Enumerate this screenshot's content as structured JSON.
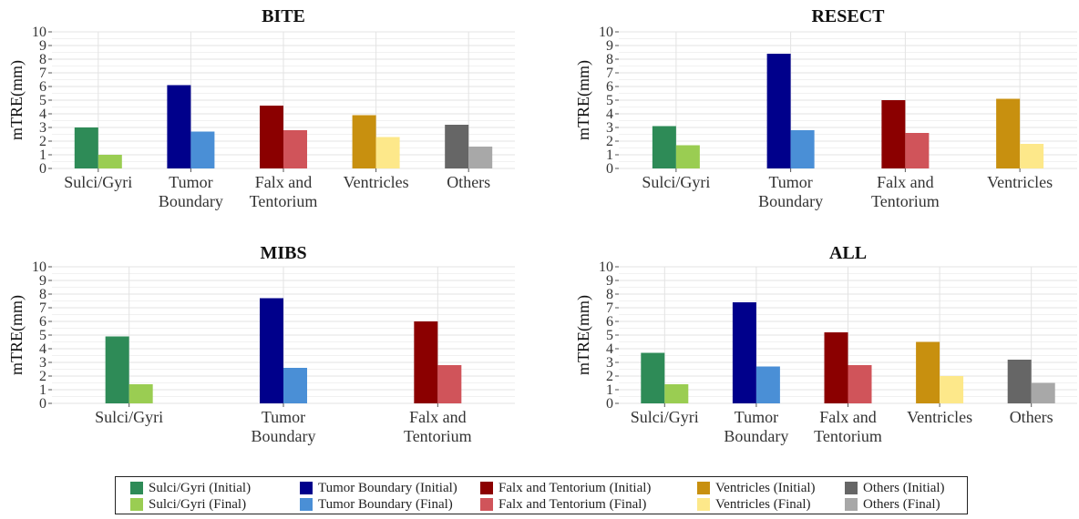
{
  "colors": {
    "sulci_initial": "#2e8b57",
    "sulci_final": "#9acd52",
    "tumor_initial": "#00008b",
    "tumor_final": "#4a8fd6",
    "falx_initial": "#8b0000",
    "falx_final": "#d0545a",
    "ventricles_initial": "#c8900f",
    "ventricles_final": "#fde88a",
    "others_initial": "#666666",
    "others_final": "#a8a8a8"
  },
  "chart_data": [
    {
      "type": "bar",
      "title": "BITE",
      "ylabel": "mTRE(mm)",
      "ylim": [
        0,
        10
      ],
      "yticks": [
        "0",
        "1",
        "2",
        "3",
        "4",
        "5",
        "6",
        "7",
        "8",
        "9",
        "10"
      ],
      "categories": [
        "Sulci/Gyri",
        "Tumor|Boundary",
        "Falx and|Tentorium",
        "Ventricles",
        "Others"
      ],
      "color_keys": [
        "sulci",
        "tumor",
        "falx",
        "ventricles",
        "others"
      ],
      "series": [
        {
          "name": "Initial",
          "values": [
            3.0,
            6.1,
            4.6,
            3.9,
            3.2
          ]
        },
        {
          "name": "Final",
          "values": [
            1.0,
            2.7,
            2.8,
            2.3,
            1.6
          ]
        }
      ],
      "grid": true
    },
    {
      "type": "bar",
      "title": "RESECT",
      "ylabel": "mTRE(mm)",
      "ylim": [
        0,
        10
      ],
      "yticks": [
        "0",
        "1",
        "2",
        "3",
        "4",
        "5",
        "6",
        "7",
        "8",
        "9",
        "10"
      ],
      "categories": [
        "Sulci/Gyri",
        "Tumor|Boundary",
        "Falx and|Tentorium",
        "Ventricles"
      ],
      "color_keys": [
        "sulci",
        "tumor",
        "falx",
        "ventricles"
      ],
      "series": [
        {
          "name": "Initial",
          "values": [
            3.1,
            8.4,
            5.0,
            5.1
          ]
        },
        {
          "name": "Final",
          "values": [
            1.7,
            2.8,
            2.6,
            1.8
          ]
        }
      ],
      "grid": true
    },
    {
      "type": "bar",
      "title": "MIBS",
      "ylabel": "mTRE(mm)",
      "ylim": [
        0,
        10
      ],
      "yticks": [
        "0",
        "1",
        "2",
        "3",
        "4",
        "5",
        "6",
        "7",
        "8",
        "9",
        "10"
      ],
      "categories": [
        "Sulci/Gyri",
        "Tumor|Boundary",
        "Falx and|Tentorium"
      ],
      "color_keys": [
        "sulci",
        "tumor",
        "falx"
      ],
      "series": [
        {
          "name": "Initial",
          "values": [
            4.9,
            7.7,
            6.0
          ]
        },
        {
          "name": "Final",
          "values": [
            1.4,
            2.6,
            2.8
          ]
        }
      ],
      "grid": true
    },
    {
      "type": "bar",
      "title": "ALL",
      "ylabel": "mTRE(mm)",
      "ylim": [
        0,
        10
      ],
      "yticks": [
        "0",
        "1",
        "2",
        "3",
        "4",
        "5",
        "6",
        "7",
        "8",
        "9",
        "10"
      ],
      "categories": [
        "Sulci/Gyri",
        "Tumor|Boundary",
        "Falx and|Tentorium",
        "Ventricles",
        "Others"
      ],
      "color_keys": [
        "sulci",
        "tumor",
        "falx",
        "ventricles",
        "others"
      ],
      "series": [
        {
          "name": "Initial",
          "values": [
            3.7,
            7.4,
            5.2,
            4.5,
            3.2
          ]
        },
        {
          "name": "Final",
          "values": [
            1.4,
            2.7,
            2.8,
            2.0,
            1.5
          ]
        }
      ],
      "grid": true
    }
  ],
  "legend": {
    "placement": "bottom",
    "items": [
      {
        "label": "Sulci/Gyri (Initial)",
        "color_key": "sulci_initial"
      },
      {
        "label": "Tumor Boundary (Initial)",
        "color_key": "tumor_initial"
      },
      {
        "label": "Falx and Tentorium (Initial)",
        "color_key": "falx_initial"
      },
      {
        "label": "Ventricles (Initial)",
        "color_key": "ventricles_initial"
      },
      {
        "label": "Others (Initial)",
        "color_key": "others_initial"
      },
      {
        "label": "Sulci/Gyri (Final)",
        "color_key": "sulci_final"
      },
      {
        "label": "Tumor Boundary (Final)",
        "color_key": "tumor_final"
      },
      {
        "label": "Falx and Tentorium (Final)",
        "color_key": "falx_final"
      },
      {
        "label": "Ventricles (Final)",
        "color_key": "ventricles_final"
      },
      {
        "label": "Others (Final)",
        "color_key": "others_final"
      }
    ]
  }
}
